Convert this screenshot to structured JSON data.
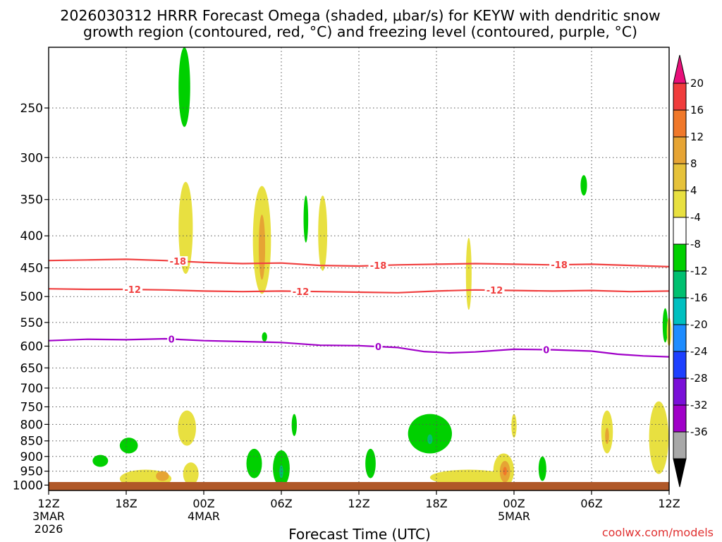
{
  "chart_data": {
    "type": "heatmap",
    "title_line1": "2026030312 HRRR Forecast Omega (shaded, μbar/s) for KEYW with dendritic snow",
    "title_line2": "growth region (contoured, red, °C) and freezing level (contoured, purple, °C)",
    "xlabel": "Forecast Time (UTC)",
    "credit": "coolwx.com/models",
    "x_range_hours": [
      0,
      48
    ],
    "x_ticks": [
      {
        "h": 0,
        "label": "12Z",
        "sub": [
          "3MAR",
          "2026"
        ]
      },
      {
        "h": 6,
        "label": "18Z",
        "sub": []
      },
      {
        "h": 12,
        "label": "00Z",
        "sub": [
          "4MAR"
        ]
      },
      {
        "h": 18,
        "label": "06Z",
        "sub": []
      },
      {
        "h": 24,
        "label": "12Z",
        "sub": []
      },
      {
        "h": 30,
        "label": "18Z",
        "sub": []
      },
      {
        "h": 36,
        "label": "00Z",
        "sub": [
          "5MAR"
        ]
      },
      {
        "h": 42,
        "label": "06Z",
        "sub": []
      },
      {
        "h": 48,
        "label": "12Z",
        "sub": []
      }
    ],
    "y_ticks": [
      250,
      300,
      350,
      400,
      450,
      500,
      550,
      600,
      650,
      700,
      750,
      800,
      850,
      900,
      950,
      1000
    ],
    "y_range_hPa": [
      200,
      1020
    ],
    "y_scale": "log",
    "grid": true,
    "colorbar": {
      "labels": [
        "20",
        "16",
        "12",
        "8",
        "4",
        "-4",
        "-8",
        "-12",
        "-16",
        "-20",
        "-24",
        "-28",
        "-32",
        "-36"
      ],
      "colors_top_to_bottom": [
        "#e8107a",
        "#f03c3c",
        "#f0782a",
        "#e6a434",
        "#e6c23a",
        "#e8e040",
        "#ffffff",
        "#00d000",
        "#00c070",
        "#00c0c0",
        "#1e8cff",
        "#1e40ff",
        "#7a10d8",
        "#a000c8",
        "#a8a8a8",
        "#000000"
      ],
      "range": [
        -40,
        24
      ]
    },
    "contours": [
      {
        "name": "dgz_-18",
        "color": "#f04040",
        "label": "-18",
        "points": [
          [
            0,
            438
          ],
          [
            3,
            437
          ],
          [
            6,
            436
          ],
          [
            9,
            438
          ],
          [
            12,
            441
          ],
          [
            15,
            443
          ],
          [
            18,
            442
          ],
          [
            21,
            446
          ],
          [
            24,
            447
          ],
          [
            27,
            445
          ],
          [
            30,
            444
          ],
          [
            33,
            443
          ],
          [
            36,
            444
          ],
          [
            39,
            445
          ],
          [
            42,
            444
          ],
          [
            45,
            446
          ],
          [
            48,
            448
          ]
        ],
        "label_h": [
          10,
          25.5,
          39.5
        ]
      },
      {
        "name": "dgz_-12",
        "color": "#f04040",
        "label": "-12",
        "points": [
          [
            0,
            486
          ],
          [
            3,
            487
          ],
          [
            6,
            487
          ],
          [
            9,
            488
          ],
          [
            12,
            490
          ],
          [
            15,
            491
          ],
          [
            18,
            490
          ],
          [
            21,
            491
          ],
          [
            24,
            492
          ],
          [
            27,
            493
          ],
          [
            30,
            490
          ],
          [
            33,
            488
          ],
          [
            36,
            489
          ],
          [
            39,
            490
          ],
          [
            42,
            489
          ],
          [
            45,
            491
          ],
          [
            48,
            490
          ]
        ],
        "label_h": [
          6.5,
          19.5,
          34.5
        ]
      },
      {
        "name": "freezing_0",
        "color": "#a000c8",
        "label": "0",
        "points": [
          [
            0,
            588
          ],
          [
            3,
            585
          ],
          [
            6,
            586
          ],
          [
            9,
            584
          ],
          [
            12,
            588
          ],
          [
            15,
            590
          ],
          [
            18,
            592
          ],
          [
            21,
            598
          ],
          [
            24,
            599
          ],
          [
            27,
            603
          ],
          [
            29,
            612
          ],
          [
            31,
            615
          ],
          [
            33,
            613
          ],
          [
            36,
            607
          ],
          [
            39,
            608
          ],
          [
            42,
            611
          ],
          [
            44,
            618
          ],
          [
            46,
            622
          ],
          [
            48,
            624
          ]
        ],
        "label_h": [
          9.5,
          25.5,
          38.5
        ]
      }
    ],
    "omega_blobs": [
      {
        "h": 10.5,
        "p1": 200,
        "p2": 268,
        "w": 0.45,
        "v": -5
      },
      {
        "h": 10.6,
        "p1": 328,
        "p2": 460,
        "w": 0.55,
        "v": 5
      },
      {
        "h": 16.5,
        "p1": 333,
        "p2": 495,
        "w": 0.7,
        "v": 5
      },
      {
        "h": 16.5,
        "p1": 370,
        "p2": 470,
        "w": 0.25,
        "v": 9
      },
      {
        "h": 19.9,
        "p1": 345,
        "p2": 410,
        "w": 0.18,
        "v": -5
      },
      {
        "h": 21.2,
        "p1": 345,
        "p2": 455,
        "w": 0.35,
        "v": 5
      },
      {
        "h": 32.5,
        "p1": 403,
        "p2": 525,
        "w": 0.22,
        "v": 5
      },
      {
        "h": 41.4,
        "p1": 320,
        "p2": 345,
        "w": 0.25,
        "v": -5
      },
      {
        "h": 47.7,
        "p1": 522,
        "p2": 592,
        "w": 0.2,
        "v": -5
      },
      {
        "h": 48.0,
        "p1": 540,
        "p2": 600,
        "w": 0.18,
        "v": 5
      },
      {
        "h": 16.7,
        "p1": 570,
        "p2": 590,
        "w": 0.2,
        "v": -5
      },
      {
        "h": 10.7,
        "p1": 760,
        "p2": 865,
        "w": 0.7,
        "v": 5
      },
      {
        "h": 19.0,
        "p1": 770,
        "p2": 835,
        "w": 0.2,
        "v": -5
      },
      {
        "h": 6.2,
        "p1": 840,
        "p2": 890,
        "w": 0.7,
        "v": -5
      },
      {
        "h": 4.0,
        "p1": 895,
        "p2": 935,
        "w": 0.6,
        "v": -5
      },
      {
        "h": 7.5,
        "p1": 945,
        "p2": 1010,
        "w": 2.0,
        "v": 5
      },
      {
        "h": 8.8,
        "p1": 950,
        "p2": 985,
        "w": 0.5,
        "v": 9
      },
      {
        "h": 11.0,
        "p1": 920,
        "p2": 1000,
        "w": 0.6,
        "v": 5
      },
      {
        "h": 15.9,
        "p1": 875,
        "p2": 975,
        "w": 0.6,
        "v": -5
      },
      {
        "h": 18.0,
        "p1": 880,
        "p2": 1005,
        "w": 0.65,
        "v": -5
      },
      {
        "h": 18.0,
        "p1": 930,
        "p2": 975,
        "w": 0.15,
        "v": -11
      },
      {
        "h": 24.9,
        "p1": 875,
        "p2": 975,
        "w": 0.4,
        "v": -5
      },
      {
        "h": 29.5,
        "p1": 770,
        "p2": 890,
        "w": 1.7,
        "v": -5
      },
      {
        "h": 29.5,
        "p1": 830,
        "p2": 860,
        "w": 0.2,
        "v": -11
      },
      {
        "h": 32.5,
        "p1": 945,
        "p2": 1000,
        "w": 3.0,
        "v": 5
      },
      {
        "h": 35.2,
        "p1": 890,
        "p2": 1010,
        "w": 0.8,
        "v": 5
      },
      {
        "h": 35.3,
        "p1": 915,
        "p2": 990,
        "w": 0.4,
        "v": 9
      },
      {
        "h": 35.3,
        "p1": 935,
        "p2": 965,
        "w": 0.15,
        "v": 13
      },
      {
        "h": 36.0,
        "p1": 770,
        "p2": 840,
        "w": 0.2,
        "v": 5
      },
      {
        "h": 38.2,
        "p1": 900,
        "p2": 985,
        "w": 0.3,
        "v": -5
      },
      {
        "h": 43.2,
        "p1": 760,
        "p2": 890,
        "w": 0.45,
        "v": 5
      },
      {
        "h": 43.2,
        "p1": 810,
        "p2": 860,
        "w": 0.15,
        "v": 9
      },
      {
        "h": 47.2,
        "p1": 735,
        "p2": 960,
        "w": 0.75,
        "v": 5
      }
    ]
  }
}
